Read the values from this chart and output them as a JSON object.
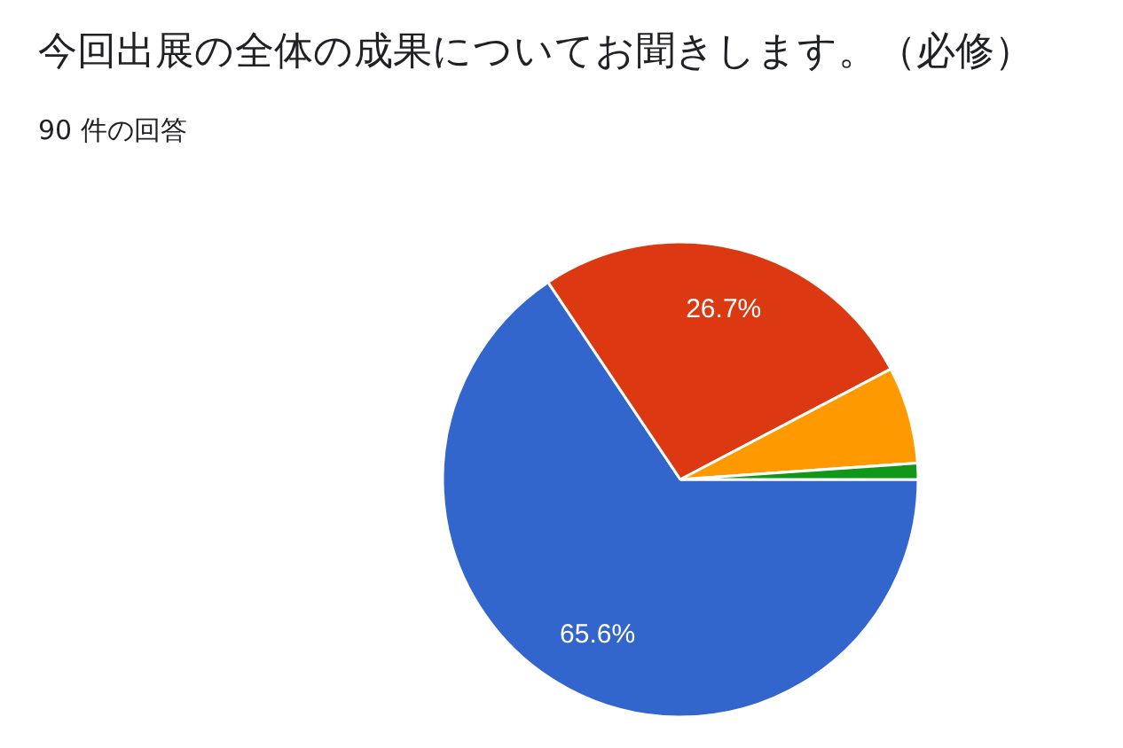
{
  "chart_data": {
    "type": "pie",
    "title": "今回出展の全体の成果についてお聞きします。（必修）",
    "subtitle": "90 件の回答",
    "categories": [
      null,
      null,
      null,
      null
    ],
    "values": [
      65.6,
      26.7,
      6.6,
      1.1
    ],
    "colors": [
      "#3366cc",
      "#dc3912",
      "#ff9900",
      "#109618"
    ],
    "value_labels": [
      "65.6%",
      "26.7%",
      null,
      null
    ]
  }
}
